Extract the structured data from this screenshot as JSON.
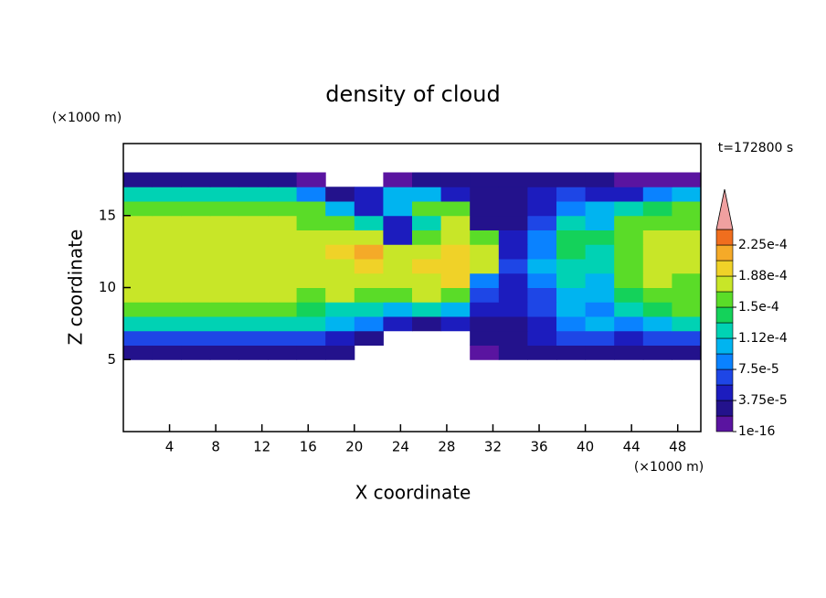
{
  "chart_data": {
    "type": "contour",
    "title": "density of cloud",
    "annotation": "t=172800 s",
    "x_label": "X coordinate",
    "y_label": "Z coordinate",
    "x_unit": "(×1000 m)",
    "y_unit": "(×1000 m)",
    "xlim": [
      0,
      50
    ],
    "ylim": [
      0,
      20
    ],
    "xticks": [
      4,
      8,
      12,
      16,
      20,
      24,
      28,
      32,
      36,
      40,
      44,
      48
    ],
    "yticks": [
      5,
      10,
      15
    ],
    "xbins": [
      0,
      2.5,
      5,
      7.5,
      10,
      12.5,
      15,
      17.5,
      20,
      22.5,
      25,
      27.5,
      30,
      32.5,
      35,
      37.5,
      40,
      42.5,
      45,
      47.5,
      50
    ],
    "ybins": [
      5,
      6,
      7,
      8,
      9,
      10,
      11,
      12,
      13,
      14,
      15,
      16,
      17,
      18
    ],
    "values": [
      [
        3e-05,
        3e-05,
        3e-05,
        3e-05,
        3e-05,
        3e-05,
        3e-05,
        2e-05,
        null,
        null,
        null,
        null,
        1e-05,
        2e-05,
        2e-05,
        2e-05,
        3e-05,
        3e-05,
        3e-05,
        3e-05
      ],
      [
        6e-05,
        6e-05,
        6e-05,
        6e-05,
        6e-05,
        6e-05,
        6e-05,
        4e-05,
        2e-05,
        null,
        null,
        null,
        2e-05,
        3e-05,
        4e-05,
        6e-05,
        6e-05,
        5e-05,
        7e-05,
        7e-05
      ],
      [
        0.00013,
        0.00013,
        0.00013,
        0.00013,
        0.00013,
        0.00013,
        0.00013,
        0.0001,
        8e-05,
        4e-05,
        3e-05,
        4e-05,
        3e-05,
        3e-05,
        5e-05,
        9e-05,
        0.0001,
        9e-05,
        0.00011,
        0.00012
      ],
      [
        0.00016,
        0.00016,
        0.00016,
        0.00016,
        0.00016,
        0.00016,
        0.00014,
        0.00013,
        0.00012,
        0.0001,
        0.00012,
        0.0001,
        5e-05,
        4e-05,
        6e-05,
        0.0001,
        8e-05,
        0.00012,
        0.00014,
        0.00015
      ],
      [
        0.000175,
        0.000175,
        0.000175,
        0.000175,
        0.000175,
        0.000175,
        0.00016,
        0.00017,
        0.00016,
        0.00016,
        0.00017,
        0.00015,
        6e-05,
        5e-05,
        7e-05,
        0.00011,
        0.0001,
        0.00014,
        0.00016,
        0.00016
      ],
      [
        0.00018,
        0.00018,
        0.00018,
        0.00018,
        0.00018,
        0.00018,
        0.00017,
        0.00018,
        0.00018,
        0.00018,
        0.000185,
        0.00019,
        8e-05,
        5e-05,
        8e-05,
        0.00012,
        0.00011,
        0.00015,
        0.00017,
        0.000165
      ],
      [
        0.000182,
        0.000182,
        0.000182,
        0.000182,
        0.000182,
        0.000182,
        0.00018,
        0.000185,
        0.00019,
        0.000185,
        0.00019,
        0.0002,
        0.00017,
        6e-05,
        0.0001,
        0.00013,
        0.00012,
        0.00015,
        0.00017,
        0.00017
      ],
      [
        0.000182,
        0.000182,
        0.000182,
        0.000182,
        0.000182,
        0.00018,
        0.00017,
        0.00019,
        0.00022,
        0.00018,
        0.00018,
        0.00019,
        0.00017,
        5e-05,
        9e-05,
        0.00014,
        0.00013,
        0.00015,
        0.00017,
        0.00017
      ],
      [
        0.00018,
        0.00018,
        0.00018,
        0.00018,
        0.00018,
        0.000175,
        0.00017,
        0.000175,
        0.00017,
        5e-05,
        0.00016,
        0.00018,
        0.00016,
        4e-05,
        8e-05,
        0.00014,
        0.00014,
        0.00016,
        0.00017,
        0.00017
      ],
      [
        0.000175,
        0.000175,
        0.000175,
        0.000175,
        0.000175,
        0.00017,
        0.00016,
        0.00015,
        0.00013,
        4e-05,
        0.00012,
        0.00017,
        3e-05,
        3e-05,
        6e-05,
        0.00012,
        0.00011,
        0.00015,
        0.00016,
        0.00016
      ],
      [
        0.00016,
        0.00016,
        0.00016,
        0.00016,
        0.00016,
        0.000155,
        0.00016,
        0.00011,
        4e-05,
        0.0001,
        0.00015,
        0.00015,
        2e-05,
        3e-05,
        5e-05,
        8e-05,
        0.0001,
        0.00012,
        0.00014,
        0.00015
      ],
      [
        0.00012,
        0.00012,
        0.00012,
        0.00012,
        0.00012,
        0.00012,
        8e-05,
        3e-05,
        4e-05,
        0.0001,
        0.0001,
        4e-05,
        2e-05,
        2e-05,
        4e-05,
        6e-05,
        4e-05,
        5e-05,
        8e-05,
        0.0001
      ],
      [
        2e-05,
        2e-05,
        2e-05,
        2e-05,
        2e-05,
        2e-05,
        1e-05,
        null,
        null,
        1e-05,
        2e-05,
        2e-05,
        2e-05,
        2e-05,
        2e-05,
        2e-05,
        2e-05,
        1e-05,
        1e-05,
        1e-05
      ]
    ],
    "levels": [
      1e-16,
      1.875e-05,
      3.75e-05,
      5.625e-05,
      7.5e-05,
      9.375e-05,
      0.0001125,
      0.00013125,
      0.00015,
      0.00016875,
      0.0001875,
      0.00020625,
      0.000225,
      0.00024375
    ],
    "colors": [
      "#5a14a0",
      "#23128c",
      "#1c1cbe",
      "#1e46e6",
      "#0a82ff",
      "#00b4f0",
      "#00d2b4",
      "#14d25a",
      "#5adc28",
      "#c8e628",
      "#f0d228",
      "#f5aa28",
      "#f06e1e"
    ],
    "over_color": "#f0a0a0",
    "colorbar_ticks": [
      {
        "value": 1e-16,
        "label": "1e-16"
      },
      {
        "value": 3.75e-05,
        "label": "3.75e-5"
      },
      {
        "value": 7.5e-05,
        "label": "7.5e-5"
      },
      {
        "value": 0.0001125,
        "label": "1.12e-4"
      },
      {
        "value": 0.00015,
        "label": "1.5e-4"
      },
      {
        "value": 0.0001875,
        "label": "1.88e-4"
      },
      {
        "value": 0.000225,
        "label": "2.25e-4"
      }
    ]
  }
}
